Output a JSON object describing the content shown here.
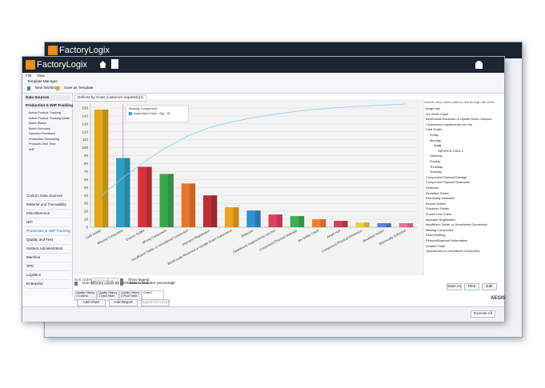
{
  "back_window": {
    "brand": "FactoryLogix"
  },
  "window": {
    "brand": "FactoryLogix",
    "menu": [
      "File",
      "View"
    ],
    "toolbar_title": "Template Manager",
    "toolbar": [
      "New Workbook",
      "Save as Template"
    ]
  },
  "sidebar": {
    "sections": [
      "Data Sources",
      "Production & WIP Tracking"
    ],
    "items": [
      "Active Product Tracking",
      "Active Product Tracking Detail",
      "Batch Status",
      "Batch Summary",
      "Operator Feedback",
      "Production Scheduling",
      "Products Over Time",
      "WIP"
    ],
    "nav": [
      "Custom Data Sources",
      "Material and Traceability",
      "Miscellaneous",
      "NPI",
      "Production & WIP Tracking",
      "Quality and Test",
      "System Administration",
      "Machine",
      "SPC",
      "Logistics",
      "Enterprise"
    ]
  },
  "report_tab": "Defects by Class (customer requests)(1)",
  "chart": {
    "type": "bar",
    "tooltip": [
      "Missing Component",
      "Inspection Code - Qty : 87"
    ],
    "categories": [
      "Cold Solder",
      "Missing Component",
      "Excess Solder",
      "Wrong Component",
      "Insufficient Solder or Unsoldered Connection",
      "Improper Registration",
      "Bent/Leads Reversed or Upside Down Component",
      "Defective",
      "Cleanliness requirements not met",
      "Component Physical Damage",
      "Arc Strike Crack",
      "Angel Hair",
      "Component Physical Dimension",
      "Dewetted Solder",
      "Electrically Defective"
    ],
    "values": [
      148,
      87,
      76,
      67,
      55,
      40,
      25,
      21,
      16,
      14,
      10,
      8,
      6,
      5,
      5
    ],
    "colors": [
      "#e0a81c",
      "#2e9fc4",
      "#d8323c",
      "#3aa84a",
      "#e8762a",
      "#b8303a",
      "#f0a020",
      "#2f8fd0",
      "#e04060",
      "#3cb050",
      "#f08030",
      "#d04050",
      "#f0d040",
      "#6080d0",
      "#f07090"
    ],
    "ylim": [
      0,
      155
    ],
    "yticks": [
      0,
      10,
      20,
      30,
      40,
      50,
      60,
      70,
      80,
      90,
      100,
      110,
      120,
      130,
      140,
      150
    ],
    "grid": true,
    "line_color": "#8fcfe0"
  },
  "tree": {
    "hint": "Double click a field value to drill through the chart",
    "items": [
      "Angel Hair",
      "Arc Strike Crack",
      "Bent/Leads Reversed or Upside Down Compon...",
      "Cleanliness requirements not met",
      "Cold Solder",
      "Friday",
      "Monday",
      "Aegis",
      "INFORCE-CS01-1",
      "Saturday",
      "Sunday",
      "Thursday",
      "Tuesday",
      "Component Physical Damage",
      "Component Physical Dimension",
      "Defective",
      "Dewetted Solder",
      "Electrically Defective",
      "Excess Solder",
      "Fractured Solder",
      "Frozen Line Crack",
      "Improper Registration",
      "Insufficient Solder or Unsoldered Connection",
      "Missing Component",
      "Paint Rubbing",
      "Pinhole/Blowhole Deformation",
      "Scratch Chain",
      "Tombstoned or Unsoldered component"
    ]
  },
  "options": {
    "sort_label": "Sort Order",
    "sort_value": "Descending",
    "checks": [
      "Show legend",
      "Use different colors for each series point",
      "Show cumulative percentage"
    ]
  },
  "tabs": [
    "Quality History 1 Criteria",
    "Quality History 1 Data Table",
    "Quality History 1 Pivot Table",
    "Chart 1"
  ],
  "actions": [
    "Save As",
    "Print",
    "Edit"
  ],
  "buttons": [
    "Add Chart",
    "Add Report",
    "Export KPI Chart"
  ],
  "status": {
    "execute": "Execute All",
    "logo": "AEGIS"
  }
}
